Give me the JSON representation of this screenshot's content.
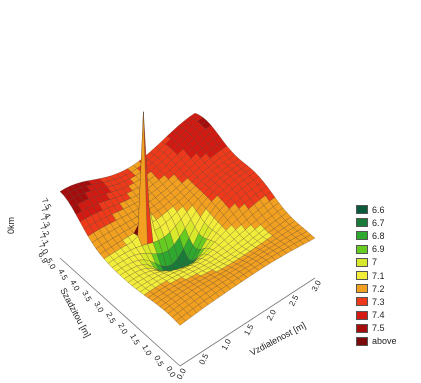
{
  "chart_data": {
    "type": "surface",
    "title": "",
    "xlabel": "Vzdialenost [m]",
    "ylabel": "Szadzitou [m]",
    "zlabel": "0km",
    "x_ticks": [
      "0.0",
      "0.5",
      "1.0",
      "1.5",
      "2.0",
      "2.5",
      "3.0"
    ],
    "y_ticks": [
      "0.0",
      "0.5",
      "1.0",
      "1.5",
      "2.0",
      "2.5",
      "3.0",
      "3.5",
      "4.0",
      "4.5",
      "5.0"
    ],
    "z_ticks": [
      "6.9",
      "7.0",
      "7.1",
      "7.2",
      "7.3",
      "7.4",
      "7.5"
    ],
    "xlim": [
      0,
      3.0
    ],
    "ylim": [
      0,
      5.0
    ],
    "zlim": [
      6.6,
      7.6
    ],
    "legend": [
      {
        "label": "6.6",
        "color": "#0a5a3c"
      },
      {
        "label": "6.7",
        "color": "#1a7a3a"
      },
      {
        "label": "6.8",
        "color": "#2fa82f"
      },
      {
        "label": "6.9",
        "color": "#66cc22"
      },
      {
        "label": "7",
        "color": "#d8e82a"
      },
      {
        "label": "7.1",
        "color": "#f2ec3a"
      },
      {
        "label": "7.2",
        "color": "#f2a020"
      },
      {
        "label": "7.3",
        "color": "#ee3a1a"
      },
      {
        "label": "7.4",
        "color": "#d21a12"
      },
      {
        "label": "7.5",
        "color": "#a50d0d"
      },
      {
        "label": "above",
        "color": "#7a0a0a"
      }
    ],
    "surface": {
      "peak": {
        "x": 0.9,
        "y": 3.2,
        "z": 9.5
      },
      "pit": {
        "x": 1.25,
        "y": 2.45,
        "z": 6.6
      },
      "ridges": [
        {
          "x": 0.0,
          "y": 5.0,
          "z": 7.55
        },
        {
          "x": 3.0,
          "y": 4.6,
          "z": 7.45
        },
        {
          "x": 2.8,
          "y": 2.4,
          "z": 7.35
        },
        {
          "x": 2.0,
          "y": 0.2,
          "z": 7.25
        },
        {
          "x": 1.8,
          "y": 1.3,
          "z": 6.98
        },
        {
          "x": 0.6,
          "y": 0.6,
          "z": 7.22
        }
      ]
    }
  }
}
